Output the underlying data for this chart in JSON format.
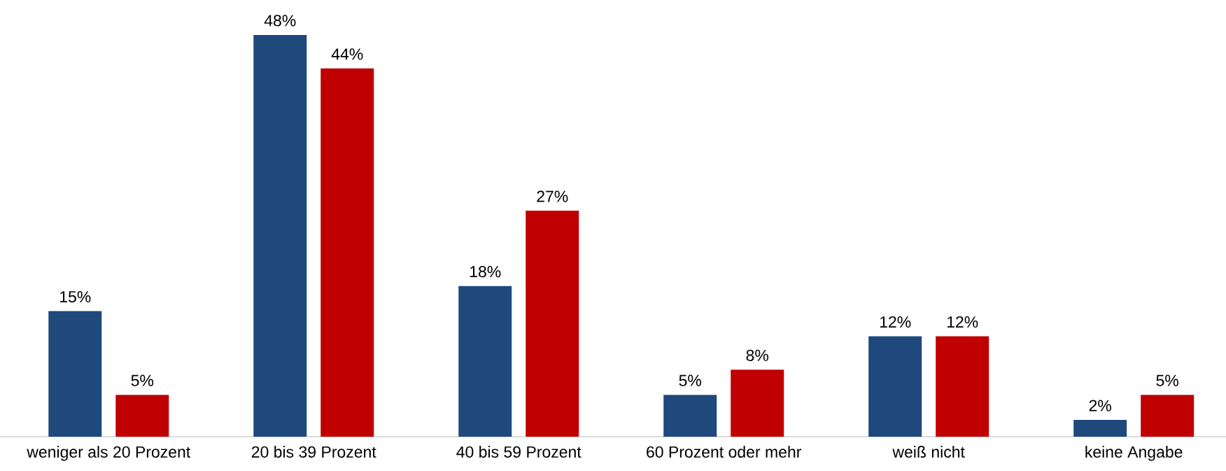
{
  "chart_data": {
    "type": "bar",
    "categories": [
      "weniger als 20 Prozent",
      "20 bis 39 Prozent",
      "40 bis 59 Prozent",
      "60 Prozent oder mehr",
      "weiß nicht",
      "keine Angabe"
    ],
    "series": [
      {
        "color": "#1f497d",
        "values": [
          15,
          48,
          18,
          5,
          12,
          2
        ],
        "value_labels": [
          "15%",
          "48%",
          "18%",
          "5%",
          "12%",
          "2%"
        ]
      },
      {
        "color": "#c00000",
        "values": [
          5,
          44,
          27,
          8,
          12,
          5
        ],
        "value_labels": [
          "5%",
          "44%",
          "27%",
          "8%",
          "12%",
          "5%"
        ]
      }
    ]
  }
}
